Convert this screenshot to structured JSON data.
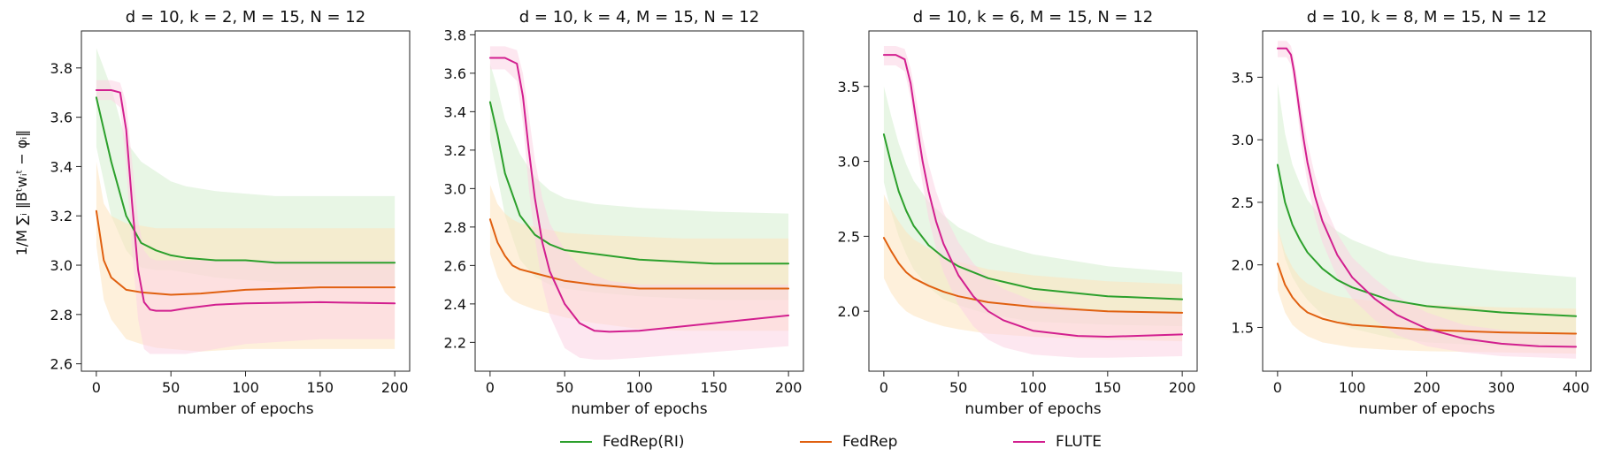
{
  "figure": {
    "ylabel": "1/M ∑ᵢ ‖Bᵗwᵢᵗ − φᵢ‖"
  },
  "legend": [
    {
      "name": "FedRep(RI)",
      "color": "#2ca02c"
    },
    {
      "name": "FedRep",
      "color": "#e06010"
    },
    {
      "name": "FLUTE",
      "color": "#d21f8f"
    }
  ],
  "chart_data": [
    {
      "type": "line",
      "title": "d = 10, k = 2, M = 15, N = 12",
      "xlabel": "number of epochs",
      "xlim": [
        -10,
        210
      ],
      "ylim": [
        2.57,
        3.95
      ],
      "xticks": [
        0,
        50,
        100,
        150,
        200
      ],
      "yticks": [
        2.6,
        2.8,
        3.0,
        3.2,
        3.4,
        3.6,
        3.8
      ],
      "ytick_labels": [
        "2.6",
        "2.8",
        "3.0",
        "3.2",
        "3.4",
        "3.6",
        "3.8"
      ],
      "series": [
        {
          "name": "FedRep(RI)",
          "color": "#2ca02c",
          "fill": "#d6efd0",
          "x": [
            0,
            10,
            20,
            30,
            40,
            50,
            60,
            80,
            100,
            120,
            150,
            200
          ],
          "values": [
            3.68,
            3.42,
            3.2,
            3.09,
            3.06,
            3.04,
            3.03,
            3.02,
            3.02,
            3.01,
            3.01,
            3.01
          ],
          "upper": [
            3.88,
            3.72,
            3.5,
            3.42,
            3.38,
            3.34,
            3.32,
            3.3,
            3.29,
            3.28,
            3.28,
            3.28
          ],
          "lower": [
            3.48,
            3.2,
            3.06,
            2.99,
            2.98,
            2.98,
            2.97,
            2.95,
            2.94,
            2.93,
            2.92,
            2.92
          ]
        },
        {
          "name": "FedRep",
          "color": "#e06010",
          "fill": "#fde3bd",
          "x": [
            0,
            5,
            10,
            20,
            30,
            40,
            50,
            70,
            100,
            150,
            200
          ],
          "values": [
            3.22,
            3.02,
            2.95,
            2.9,
            2.89,
            2.885,
            2.88,
            2.885,
            2.9,
            2.91,
            2.91
          ],
          "upper": [
            3.42,
            3.25,
            3.2,
            3.17,
            3.16,
            3.15,
            3.15,
            3.15,
            3.15,
            3.15,
            3.15
          ],
          "lower": [
            3.08,
            2.86,
            2.78,
            2.7,
            2.68,
            2.665,
            2.66,
            2.65,
            2.66,
            2.66,
            2.66
          ]
        },
        {
          "name": "FLUTE",
          "color": "#d21f8f",
          "fill": "#fbd3e3",
          "x": [
            0,
            10,
            16,
            20,
            24,
            28,
            32,
            36,
            40,
            50,
            60,
            80,
            100,
            150,
            200
          ],
          "values": [
            3.71,
            3.71,
            3.7,
            3.55,
            3.25,
            2.98,
            2.85,
            2.82,
            2.815,
            2.815,
            2.825,
            2.84,
            2.845,
            2.85,
            2.845
          ],
          "upper": [
            3.75,
            3.75,
            3.74,
            3.66,
            3.42,
            3.18,
            3.06,
            3.03,
            3.02,
            3.02,
            3.02,
            3.02,
            3.02,
            3.02,
            3.02
          ],
          "lower": [
            3.67,
            3.67,
            3.64,
            3.4,
            3.06,
            2.78,
            2.66,
            2.64,
            2.64,
            2.64,
            2.64,
            2.66,
            2.68,
            2.7,
            2.7
          ]
        }
      ]
    },
    {
      "type": "line",
      "title": "d = 10, k = 4, M = 15, N = 12",
      "xlabel": "number of epochs",
      "xlim": [
        -10,
        210
      ],
      "ylim": [
        2.05,
        3.82
      ],
      "xticks": [
        0,
        50,
        100,
        150,
        200
      ],
      "yticks": [
        2.2,
        2.4,
        2.6,
        2.8,
        3.0,
        3.2,
        3.4,
        3.6,
        3.8
      ],
      "ytick_labels": [
        "2.2",
        "2.4",
        "2.6",
        "2.8",
        "3.0",
        "3.2",
        "3.4",
        "3.6",
        "3.8"
      ],
      "series": [
        {
          "name": "FedRep(RI)",
          "color": "#2ca02c",
          "fill": "#d6efd0",
          "x": [
            0,
            5,
            10,
            20,
            30,
            40,
            50,
            70,
            100,
            150,
            200
          ],
          "values": [
            3.45,
            3.28,
            3.08,
            2.86,
            2.76,
            2.71,
            2.68,
            2.66,
            2.63,
            2.61,
            2.61
          ],
          "upper": [
            3.65,
            3.52,
            3.36,
            3.18,
            3.06,
            2.99,
            2.95,
            2.92,
            2.9,
            2.88,
            2.87
          ],
          "lower": [
            3.25,
            3.06,
            2.86,
            2.63,
            2.54,
            2.5,
            2.48,
            2.46,
            2.44,
            2.42,
            2.42
          ]
        },
        {
          "name": "FedRep",
          "color": "#e06010",
          "fill": "#fde3bd",
          "x": [
            0,
            5,
            10,
            15,
            20,
            30,
            50,
            70,
            100,
            130,
            160,
            200
          ],
          "values": [
            2.84,
            2.72,
            2.65,
            2.6,
            2.58,
            2.56,
            2.52,
            2.5,
            2.48,
            2.48,
            2.48,
            2.48
          ],
          "upper": [
            3.02,
            2.92,
            2.87,
            2.84,
            2.82,
            2.8,
            2.77,
            2.76,
            2.75,
            2.74,
            2.74,
            2.74
          ],
          "lower": [
            2.66,
            2.54,
            2.46,
            2.42,
            2.4,
            2.37,
            2.33,
            2.3,
            2.27,
            2.26,
            2.26,
            2.26
          ]
        },
        {
          "name": "FLUTE",
          "color": "#d21f8f",
          "fill": "#fbd3e3",
          "x": [
            0,
            10,
            18,
            22,
            26,
            30,
            35,
            40,
            50,
            60,
            70,
            80,
            100,
            150,
            200
          ],
          "values": [
            3.68,
            3.68,
            3.65,
            3.48,
            3.2,
            2.95,
            2.72,
            2.57,
            2.4,
            2.3,
            2.26,
            2.255,
            2.26,
            2.3,
            2.34
          ],
          "upper": [
            3.74,
            3.74,
            3.72,
            3.6,
            3.38,
            3.15,
            2.95,
            2.82,
            2.68,
            2.6,
            2.55,
            2.52,
            2.5,
            2.5,
            2.5
          ],
          "lower": [
            3.62,
            3.62,
            3.56,
            3.34,
            3.0,
            2.74,
            2.5,
            2.34,
            2.17,
            2.12,
            2.11,
            2.11,
            2.12,
            2.15,
            2.18
          ]
        }
      ]
    },
    {
      "type": "line",
      "title": "d = 10, k = 6, M = 15, N = 12",
      "xlabel": "number of epochs",
      "xlim": [
        -10,
        210
      ],
      "ylim": [
        1.6,
        3.87
      ],
      "xticks": [
        0,
        50,
        100,
        150,
        200
      ],
      "yticks": [
        2.0,
        2.5,
        3.0,
        3.5
      ],
      "ytick_labels": [
        "2.0",
        "2.5",
        "3.0",
        "3.5"
      ],
      "series": [
        {
          "name": "FedRep(RI)",
          "color": "#2ca02c",
          "fill": "#d6efd0",
          "x": [
            0,
            5,
            10,
            15,
            20,
            30,
            40,
            50,
            70,
            100,
            150,
            200
          ],
          "values": [
            3.18,
            2.98,
            2.8,
            2.67,
            2.57,
            2.44,
            2.36,
            2.3,
            2.22,
            2.15,
            2.1,
            2.08
          ],
          "upper": [
            3.5,
            3.3,
            3.12,
            2.98,
            2.87,
            2.73,
            2.64,
            2.56,
            2.46,
            2.38,
            2.3,
            2.26
          ],
          "lower": [
            2.86,
            2.66,
            2.5,
            2.38,
            2.28,
            2.16,
            2.08,
            2.04,
            1.98,
            1.93,
            1.91,
            1.9
          ]
        },
        {
          "name": "FedRep",
          "color": "#e06010",
          "fill": "#fde3bd",
          "x": [
            0,
            5,
            10,
            15,
            20,
            30,
            40,
            50,
            70,
            100,
            150,
            200
          ],
          "values": [
            2.49,
            2.4,
            2.32,
            2.26,
            2.22,
            2.17,
            2.13,
            2.1,
            2.06,
            2.03,
            2.0,
            1.99
          ],
          "upper": [
            2.78,
            2.68,
            2.6,
            2.53,
            2.48,
            2.42,
            2.37,
            2.33,
            2.28,
            2.24,
            2.2,
            2.18
          ],
          "lower": [
            2.22,
            2.12,
            2.05,
            2.0,
            1.97,
            1.93,
            1.9,
            1.88,
            1.85,
            1.83,
            1.81,
            1.8
          ]
        },
        {
          "name": "FLUTE",
          "color": "#d21f8f",
          "fill": "#fbd3e3",
          "x": [
            0,
            8,
            14,
            18,
            22,
            26,
            30,
            35,
            40,
            50,
            60,
            70,
            80,
            100,
            130,
            150,
            200
          ],
          "values": [
            3.71,
            3.71,
            3.68,
            3.52,
            3.25,
            3.0,
            2.8,
            2.6,
            2.45,
            2.24,
            2.1,
            2.0,
            1.94,
            1.87,
            1.835,
            1.83,
            1.845
          ],
          "upper": [
            3.77,
            3.77,
            3.75,
            3.62,
            3.4,
            3.16,
            2.98,
            2.8,
            2.66,
            2.46,
            2.32,
            2.22,
            2.15,
            2.07,
            2.02,
            2.0,
            1.99
          ],
          "lower": [
            3.64,
            3.64,
            3.6,
            3.42,
            3.1,
            2.85,
            2.62,
            2.42,
            2.26,
            2.04,
            1.9,
            1.81,
            1.76,
            1.71,
            1.69,
            1.69,
            1.7
          ]
        }
      ]
    },
    {
      "type": "line",
      "title": "d = 10, k = 8, M = 15, N = 12",
      "xlabel": "number of epochs",
      "xlim": [
        -20,
        420
      ],
      "ylim": [
        1.15,
        3.87
      ],
      "xticks": [
        0,
        100,
        200,
        300,
        400
      ],
      "yticks": [
        1.5,
        2.0,
        2.5,
        3.0,
        3.5
      ],
      "ytick_labels": [
        "1.5",
        "2.0",
        "2.5",
        "3.0",
        "3.5"
      ],
      "series": [
        {
          "name": "FedRep(RI)",
          "color": "#2ca02c",
          "fill": "#d6efd0",
          "x": [
            0,
            10,
            20,
            30,
            40,
            60,
            80,
            100,
            150,
            200,
            300,
            400
          ],
          "values": [
            2.8,
            2.5,
            2.32,
            2.2,
            2.1,
            1.97,
            1.88,
            1.82,
            1.72,
            1.67,
            1.62,
            1.59
          ],
          "upper": [
            3.45,
            3.05,
            2.8,
            2.65,
            2.52,
            2.37,
            2.27,
            2.2,
            2.08,
            2.02,
            1.95,
            1.9
          ],
          "lower": [
            2.3,
            2.05,
            1.9,
            1.8,
            1.72,
            1.6,
            1.54,
            1.49,
            1.42,
            1.38,
            1.35,
            1.34
          ]
        },
        {
          "name": "FedRep",
          "color": "#e06010",
          "fill": "#fde3bd",
          "x": [
            0,
            10,
            20,
            30,
            40,
            60,
            80,
            100,
            150,
            200,
            300,
            400
          ],
          "values": [
            2.01,
            1.84,
            1.74,
            1.67,
            1.62,
            1.57,
            1.54,
            1.52,
            1.5,
            1.48,
            1.46,
            1.45
          ],
          "upper": [
            2.3,
            2.1,
            1.98,
            1.9,
            1.85,
            1.79,
            1.75,
            1.73,
            1.7,
            1.68,
            1.66,
            1.65
          ],
          "lower": [
            1.8,
            1.62,
            1.52,
            1.47,
            1.43,
            1.38,
            1.36,
            1.34,
            1.32,
            1.31,
            1.3,
            1.29
          ]
        },
        {
          "name": "FLUTE",
          "color": "#d21f8f",
          "fill": "#fbd3e3",
          "x": [
            0,
            12,
            18,
            22,
            26,
            30,
            35,
            40,
            50,
            60,
            80,
            100,
            130,
            160,
            200,
            250,
            300,
            350,
            400
          ],
          "values": [
            3.73,
            3.73,
            3.68,
            3.55,
            3.38,
            3.2,
            3.0,
            2.82,
            2.55,
            2.35,
            2.08,
            1.9,
            1.73,
            1.6,
            1.49,
            1.41,
            1.37,
            1.35,
            1.345
          ],
          "upper": [
            3.79,
            3.79,
            3.75,
            3.65,
            3.5,
            3.34,
            3.15,
            2.98,
            2.72,
            2.52,
            2.25,
            2.06,
            1.89,
            1.75,
            1.62,
            1.52,
            1.48,
            1.45,
            1.44
          ],
          "lower": [
            3.66,
            3.66,
            3.6,
            3.44,
            3.25,
            3.05,
            2.84,
            2.66,
            2.38,
            2.18,
            1.9,
            1.73,
            1.56,
            1.44,
            1.35,
            1.3,
            1.27,
            1.26,
            1.25
          ]
        }
      ]
    }
  ]
}
